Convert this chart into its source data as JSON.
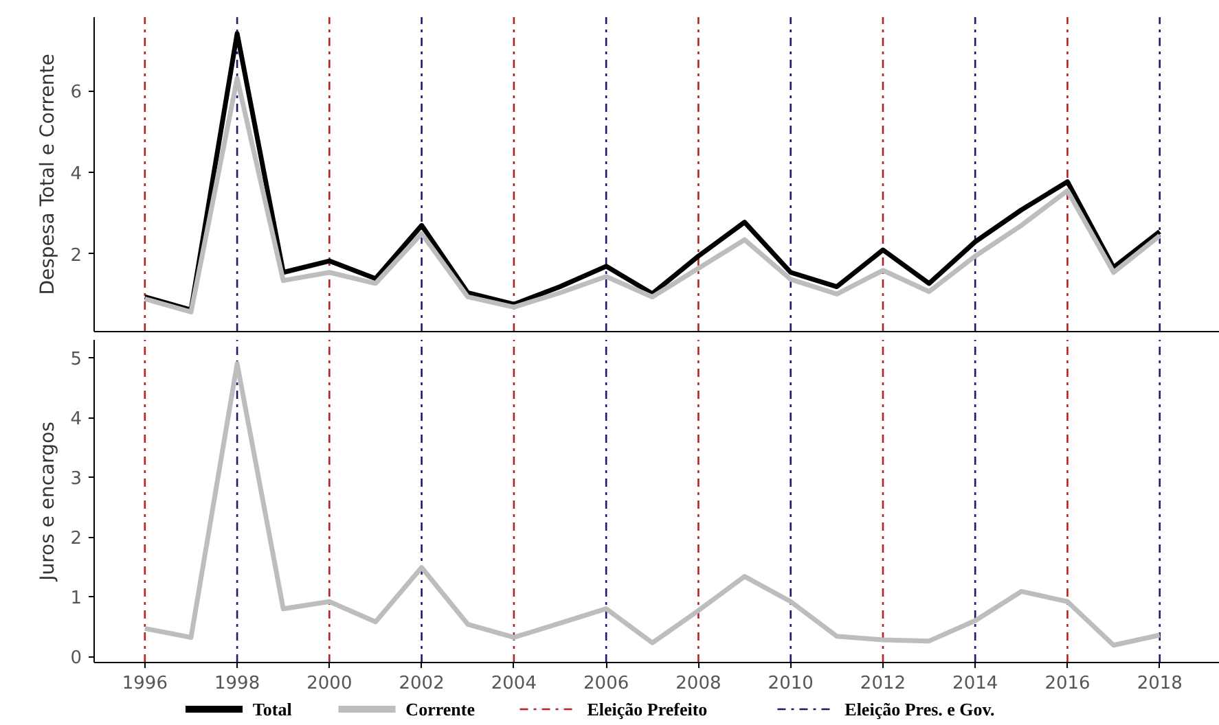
{
  "chart_data": [
    {
      "type": "line",
      "ylabel": "Despesa Total e Corrente",
      "x": [
        1996,
        1997,
        1998,
        1999,
        2000,
        2001,
        2002,
        2003,
        2004,
        2005,
        2006,
        2007,
        2008,
        2009,
        2010,
        2011,
        2012,
        2013,
        2014,
        2015,
        2016,
        2017,
        2018
      ],
      "series": [
        {
          "name": "Total",
          "color": "#000000",
          "values": [
            0.95,
            0.63,
            7.4,
            1.55,
            1.83,
            1.4,
            2.7,
            1.05,
            0.77,
            1.2,
            1.7,
            1.03,
            1.95,
            2.78,
            1.55,
            1.2,
            2.1,
            1.28,
            2.3,
            3.08,
            3.77,
            1.67,
            2.55
          ]
        },
        {
          "name": "Corrente",
          "color": "#bdbdbd",
          "values": [
            0.9,
            0.58,
            6.3,
            1.35,
            1.55,
            1.28,
            2.5,
            0.95,
            0.7,
            1.05,
            1.45,
            0.95,
            1.65,
            2.35,
            1.38,
            1.02,
            1.6,
            1.08,
            1.95,
            2.7,
            3.55,
            1.55,
            2.45
          ]
        }
      ],
      "xlim": [
        1994.9,
        2019.3
      ],
      "xticks": [
        1996,
        1998,
        2000,
        2002,
        2004,
        2006,
        2008,
        2010,
        2012,
        2014,
        2016,
        2018
      ],
      "ylim": [
        0.1,
        7.8
      ],
      "yticks": [
        2,
        4,
        6
      ],
      "tick_labels": "y",
      "grid": false,
      "legend": "bottom",
      "line_style": "solid",
      "marker": "none",
      "ref_lines": [
        {
          "axis": "x",
          "value": 1996,
          "color": "#b22222",
          "line_style": "dashdot"
        },
        {
          "axis": "x",
          "value": 1998,
          "color": "#1a1a6e",
          "line_style": "dashdot"
        },
        {
          "axis": "x",
          "value": 2000,
          "color": "#b22222",
          "line_style": "dashdot"
        },
        {
          "axis": "x",
          "value": 2002,
          "color": "#1a1a6e",
          "line_style": "dashdot"
        },
        {
          "axis": "x",
          "value": 2004,
          "color": "#b22222",
          "line_style": "dashdot"
        },
        {
          "axis": "x",
          "value": 2006,
          "color": "#1a1a6e",
          "line_style": "dashdot"
        },
        {
          "axis": "x",
          "value": 2008,
          "color": "#b22222",
          "line_style": "dashdot"
        },
        {
          "axis": "x",
          "value": 2010,
          "color": "#1a1a6e",
          "line_style": "dashdot"
        },
        {
          "axis": "x",
          "value": 2012,
          "color": "#b22222",
          "line_style": "dashdot"
        },
        {
          "axis": "x",
          "value": 2014,
          "color": "#1a1a6e",
          "line_style": "dashdot"
        },
        {
          "axis": "x",
          "value": 2016,
          "color": "#b22222",
          "line_style": "dashdot"
        },
        {
          "axis": "x",
          "value": 2018,
          "color": "#1a1a6e",
          "line_style": "dashdot"
        }
      ]
    },
    {
      "type": "line",
      "ylabel": "Juros e encargos",
      "x": [
        1996,
        1997,
        1998,
        1999,
        2000,
        2001,
        2002,
        2003,
        2004,
        2005,
        2006,
        2007,
        2008,
        2009,
        2010,
        2011,
        2012,
        2013,
        2014,
        2015,
        2016,
        2017,
        2018
      ],
      "series": [
        {
          "color": "#bdbdbd",
          "values": [
            0.47,
            0.32,
            4.9,
            0.8,
            0.92,
            0.58,
            1.49,
            0.54,
            0.32,
            0.56,
            0.8,
            0.23,
            0.77,
            1.34,
            0.92,
            0.34,
            0.28,
            0.26,
            0.6,
            1.09,
            0.92,
            0.19,
            0.36
          ]
        }
      ],
      "xlim": [
        1994.9,
        2019.3
      ],
      "xticks": [
        1996,
        1998,
        2000,
        2002,
        2004,
        2006,
        2008,
        2010,
        2012,
        2014,
        2016,
        2018
      ],
      "ylim": [
        -0.1,
        5.3
      ],
      "yticks": [
        0,
        1,
        2,
        3,
        4,
        5
      ],
      "grid": false,
      "legend": "bottom",
      "line_style": "solid",
      "marker": "none",
      "ref_lines": [
        {
          "axis": "x",
          "value": 1996,
          "color": "#b22222",
          "line_style": "dashdot",
          "label": "Eleição Prefeito"
        },
        {
          "axis": "x",
          "value": 1998,
          "color": "#1a1a6e",
          "line_style": "dashdot",
          "label": "Eleição Pres. e Gov."
        },
        {
          "axis": "x",
          "value": 2000,
          "color": "#b22222",
          "line_style": "dashdot"
        },
        {
          "axis": "x",
          "value": 2002,
          "color": "#1a1a6e",
          "line_style": "dashdot"
        },
        {
          "axis": "x",
          "value": 2004,
          "color": "#b22222",
          "line_style": "dashdot"
        },
        {
          "axis": "x",
          "value": 2006,
          "color": "#1a1a6e",
          "line_style": "dashdot"
        },
        {
          "axis": "x",
          "value": 2008,
          "color": "#b22222",
          "line_style": "dashdot"
        },
        {
          "axis": "x",
          "value": 2010,
          "color": "#1a1a6e",
          "line_style": "dashdot"
        },
        {
          "axis": "x",
          "value": 2012,
          "color": "#b22222",
          "line_style": "dashdot"
        },
        {
          "axis": "x",
          "value": 2014,
          "color": "#1a1a6e",
          "line_style": "dashdot"
        },
        {
          "axis": "x",
          "value": 2016,
          "color": "#b22222",
          "line_style": "dashdot"
        },
        {
          "axis": "x",
          "value": 2018,
          "color": "#1a1a6e",
          "line_style": "dashdot"
        }
      ]
    }
  ]
}
